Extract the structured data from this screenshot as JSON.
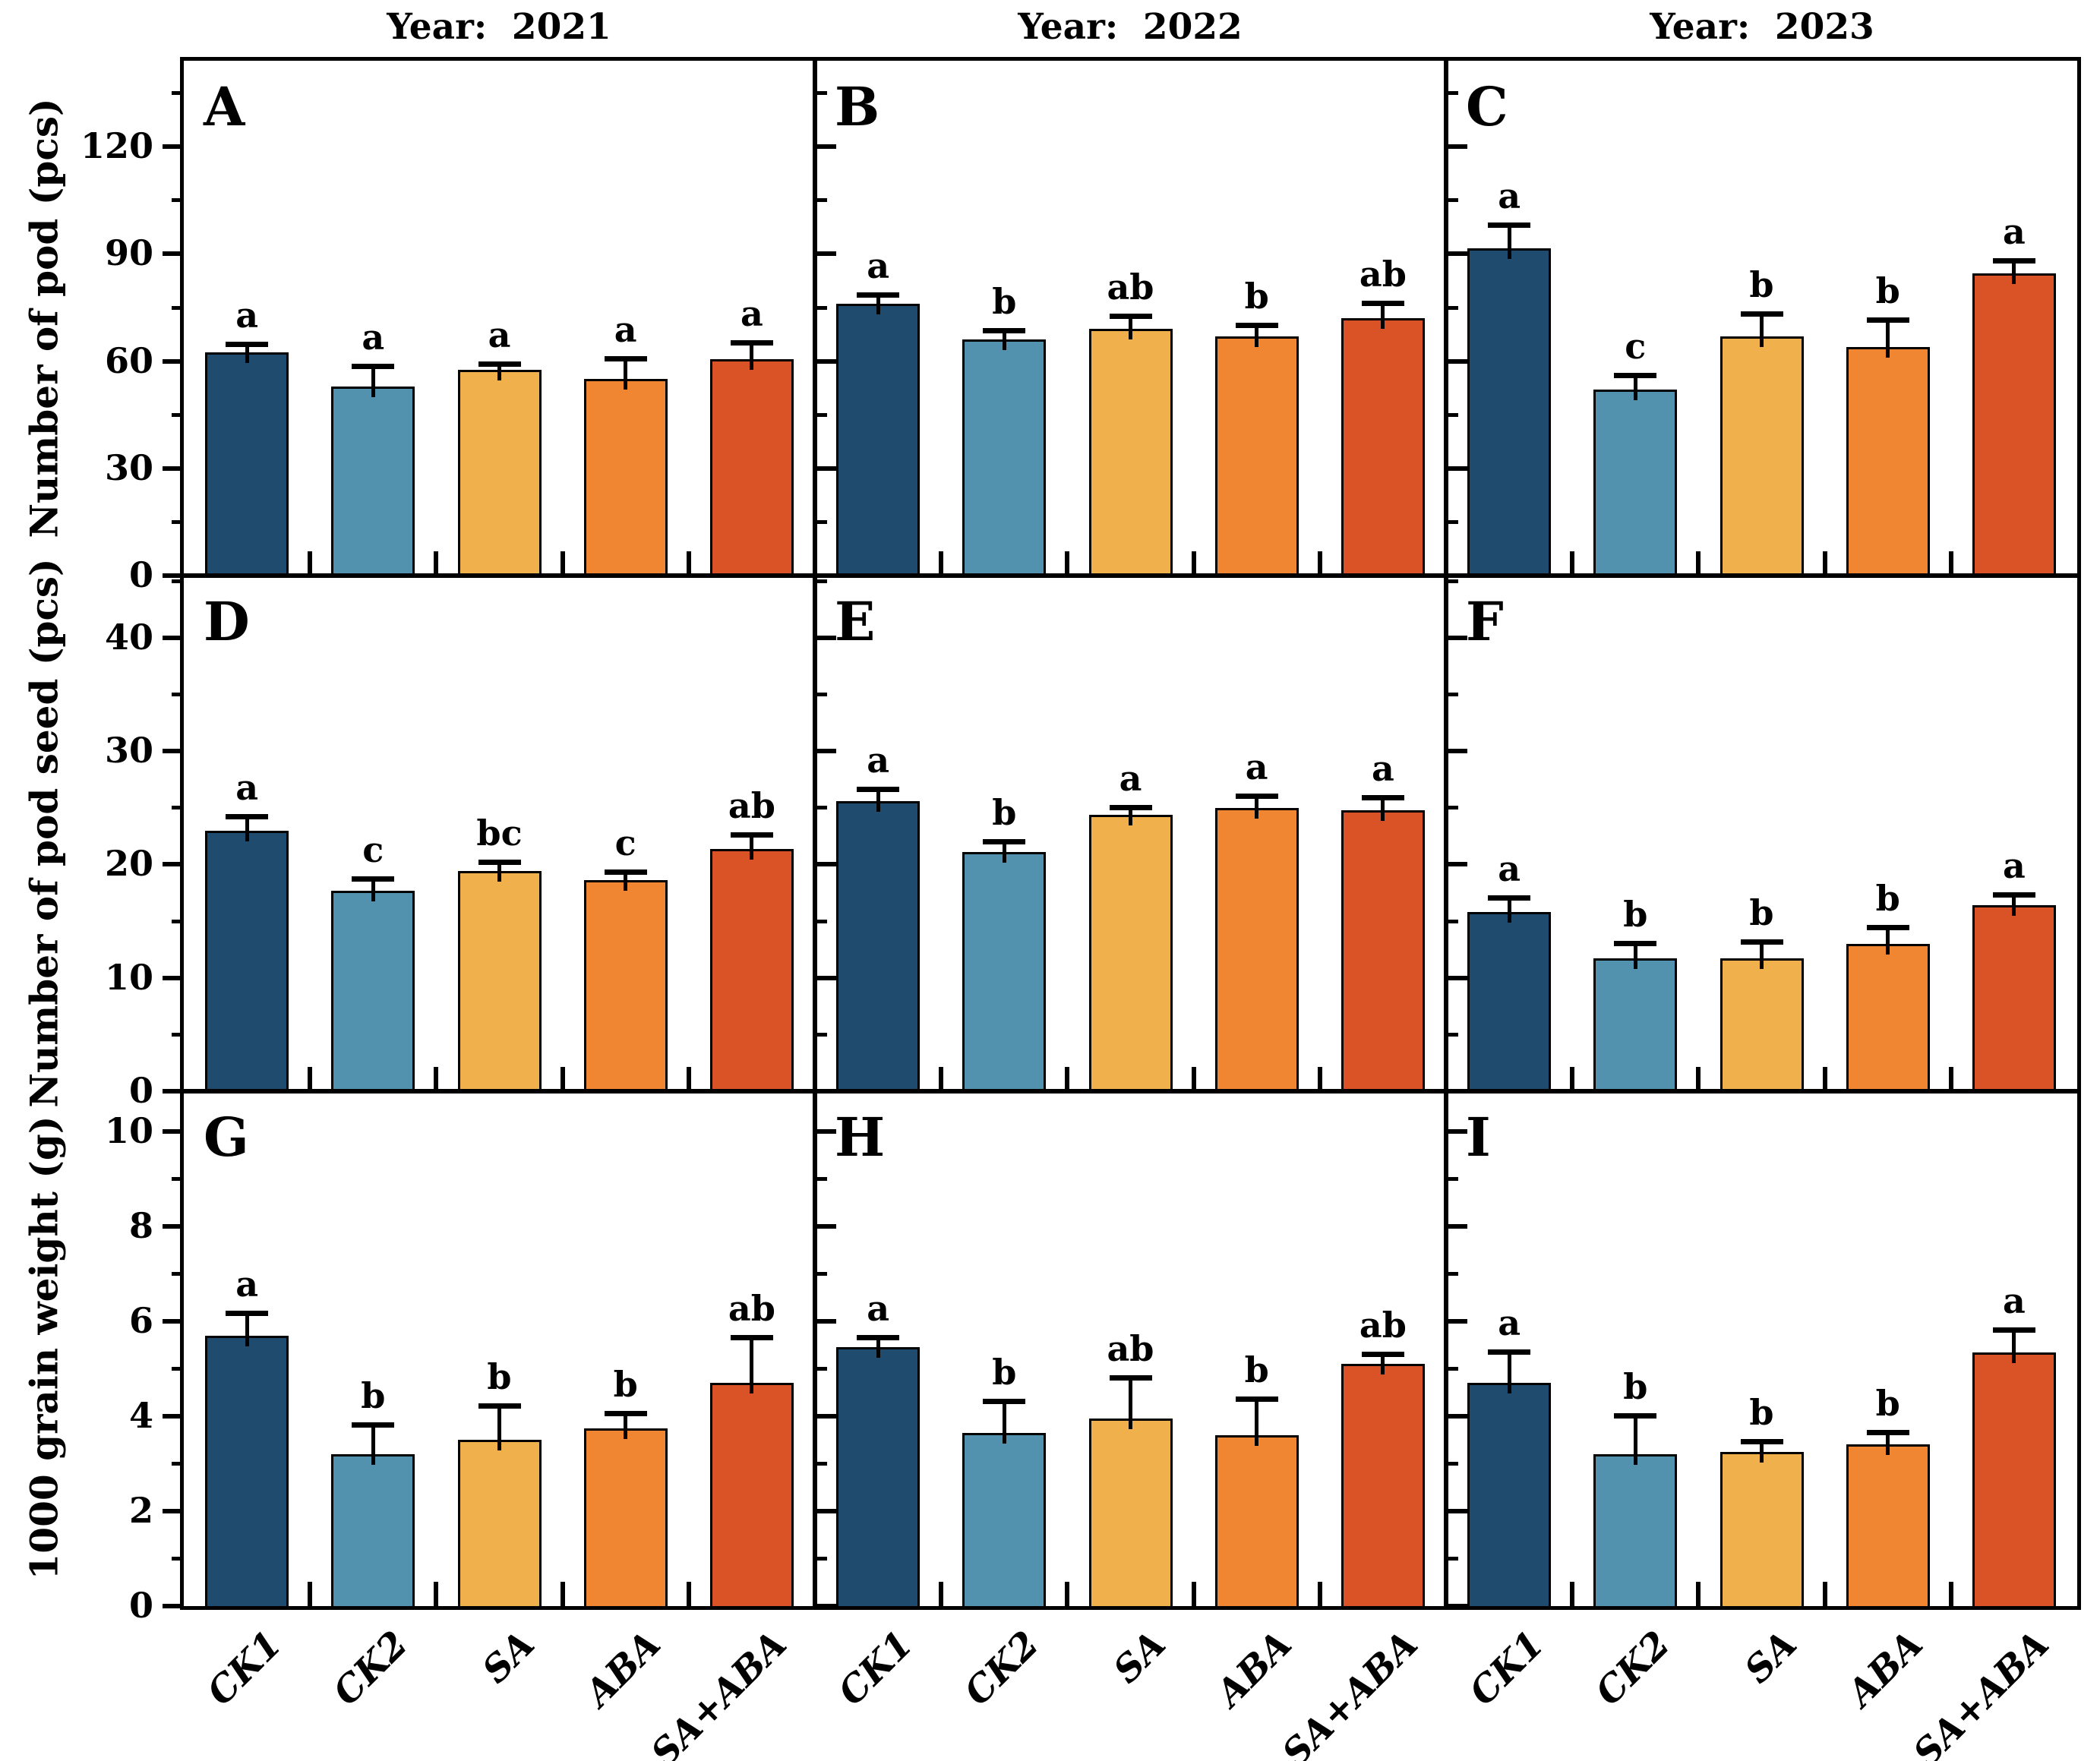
{
  "figure": {
    "column_titles": [
      "Year：2021",
      "Year：2022",
      "Year：2023"
    ],
    "row_ylabels": [
      "Number of pod (pcs)",
      "Number of pod seed (pcs)",
      "1000 grain weight (g)"
    ],
    "categories": [
      "CK1",
      "CK2",
      "SA",
      "ABA",
      "SA+ABA"
    ],
    "bar_colors": [
      "#1F4B6E",
      "#5292AF",
      "#F0B04C",
      "#F08532",
      "#DA5327"
    ],
    "panel_letters": [
      "A",
      "B",
      "C",
      "D",
      "E",
      "F",
      "G",
      "H",
      "I"
    ]
  },
  "chart_data": {
    "type": "bar",
    "categories": [
      "CK1",
      "CK2",
      "SA",
      "ABA",
      "SA+ABA"
    ],
    "bar_colors": [
      "#1F4B6E",
      "#5292AF",
      "#F0B04C",
      "#F08532",
      "#DA5327"
    ],
    "columns": [
      {
        "title": "Year：2021"
      },
      {
        "title": "Year：2022"
      },
      {
        "title": "Year：2023"
      }
    ],
    "rows": [
      {
        "ylabel": "Number of pod (pcs)",
        "yticks": [
          0,
          30,
          60,
          90,
          120
        ],
        "minor_ticks": [
          15,
          45,
          75,
          105,
          135
        ],
        "ylim": [
          0,
          144
        ],
        "grid": false
      },
      {
        "ylabel": "Number of pod seed (pcs)",
        "yticks": [
          0,
          10,
          20,
          30,
          40
        ],
        "minor_ticks": [
          5,
          15,
          25,
          35,
          45
        ],
        "ylim": [
          0,
          45.5
        ],
        "grid": false
      },
      {
        "ylabel": "1000 grain weight (g)",
        "yticks": [
          0,
          2,
          4,
          6,
          8,
          10
        ],
        "minor_ticks": [
          1,
          3,
          5,
          7,
          9
        ],
        "ylim": [
          0,
          10.85
        ],
        "grid": false
      }
    ],
    "panels": [
      {
        "id": "A",
        "row": 0,
        "col": 0,
        "year": "2021",
        "values": [
          62.5,
          53,
          57.5,
          55,
          60.5
        ],
        "errors": [
          2,
          5.5,
          1.5,
          5.5,
          4.5
        ],
        "letters": [
          "a",
          "a",
          "a",
          "a",
          "a"
        ]
      },
      {
        "id": "B",
        "row": 0,
        "col": 1,
        "year": "2022",
        "values": [
          76,
          66,
          69,
          67,
          72
        ],
        "errors": [
          2.5,
          2.5,
          3.5,
          3,
          4
        ],
        "letters": [
          "a",
          "b",
          "ab",
          "b",
          "ab"
        ]
      },
      {
        "id": "C",
        "row": 0,
        "col": 2,
        "year": "2023",
        "values": [
          91.5,
          52,
          67,
          64,
          84.5
        ],
        "errors": [
          6.5,
          4,
          6,
          7.5,
          3.5
        ],
        "letters": [
          "a",
          "c",
          "b",
          "b",
          "a"
        ]
      },
      {
        "id": "D",
        "row": 1,
        "col": 0,
        "year": "2021",
        "values": [
          23,
          17.7,
          19.4,
          18.6,
          21.4
        ],
        "errors": [
          1.2,
          1,
          0.8,
          0.7,
          1.2
        ],
        "letters": [
          "a",
          "c",
          "bc",
          "c",
          "ab"
        ]
      },
      {
        "id": "E",
        "row": 1,
        "col": 1,
        "year": "2022",
        "values": [
          25.6,
          21.1,
          24.4,
          25,
          24.8
        ],
        "errors": [
          1,
          0.9,
          0.6,
          1,
          1.1
        ],
        "letters": [
          "a",
          "b",
          "a",
          "a",
          "a"
        ]
      },
      {
        "id": "F",
        "row": 1,
        "col": 2,
        "year": "2023",
        "values": [
          15.8,
          11.7,
          11.7,
          13,
          16.4
        ],
        "errors": [
          1.2,
          1.3,
          1.4,
          1.4,
          0.9
        ],
        "letters": [
          "a",
          "b",
          "b",
          "b",
          "a"
        ]
      },
      {
        "id": "G",
        "row": 2,
        "col": 0,
        "year": "2021",
        "values": [
          5.7,
          3.2,
          3.5,
          3.75,
          4.7
        ],
        "errors": [
          0.45,
          0.6,
          0.7,
          0.3,
          0.95
        ],
        "letters": [
          "a",
          "b",
          "b",
          "b",
          "ab"
        ]
      },
      {
        "id": "H",
        "row": 2,
        "col": 1,
        "year": "2022",
        "values": [
          5.45,
          3.65,
          3.95,
          3.6,
          5.1
        ],
        "errors": [
          0.2,
          0.65,
          0.85,
          0.75,
          0.2
        ],
        "letters": [
          "a",
          "b",
          "ab",
          "b",
          "ab"
        ]
      },
      {
        "id": "I",
        "row": 2,
        "col": 2,
        "year": "2023",
        "values": [
          4.7,
          3.2,
          3.25,
          3.4,
          5.35
        ],
        "errors": [
          0.65,
          0.8,
          0.2,
          0.25,
          0.45
        ],
        "letters": [
          "a",
          "b",
          "b",
          "b",
          "a"
        ]
      }
    ]
  }
}
